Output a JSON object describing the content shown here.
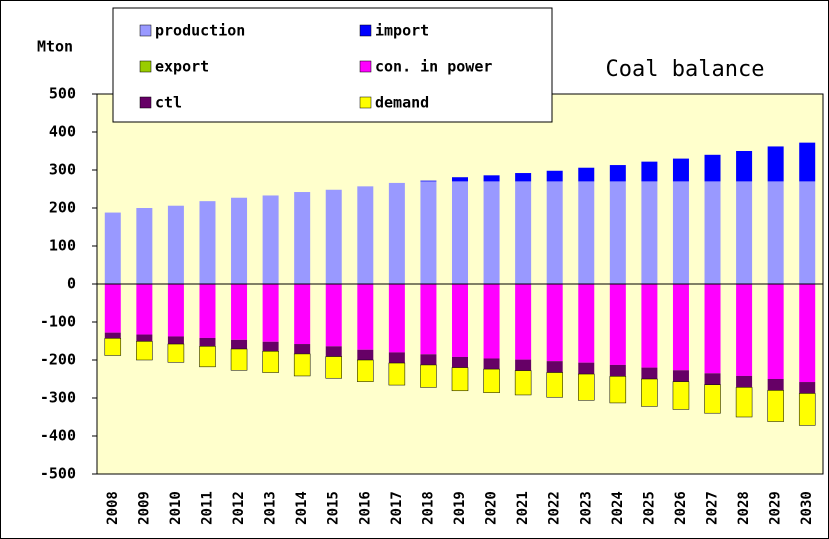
{
  "chart_data": {
    "type": "bar",
    "stacked": true,
    "title": "Coal balance",
    "y_label": "Mton",
    "categories": [
      "2008",
      "2009",
      "2010",
      "2011",
      "2012",
      "2013",
      "2014",
      "2015",
      "2016",
      "2017",
      "2018",
      "2019",
      "2020",
      "2021",
      "2022",
      "2023",
      "2024",
      "2025",
      "2026",
      "2027",
      "2028",
      "2029",
      "2030"
    ],
    "series": [
      {
        "name": "production",
        "color": "#9999ff",
        "values": [
          188,
          200,
          206,
          218,
          227,
          233,
          242,
          248,
          257,
          266,
          270,
          270,
          270,
          270,
          270,
          270,
          270,
          270,
          270,
          270,
          270,
          270,
          270
        ]
      },
      {
        "name": "import",
        "color": "#0000ff",
        "values": [
          0,
          0,
          0,
          0,
          0,
          0,
          0,
          0,
          0,
          0,
          2,
          11,
          16,
          22,
          28,
          36,
          43,
          52,
          60,
          70,
          80,
          92,
          102
        ]
      },
      {
        "name": "export",
        "color": "#99cc00",
        "values": [
          0,
          0,
          0,
          0,
          0,
          0,
          0,
          0,
          0,
          0,
          0,
          0,
          0,
          0,
          0,
          0,
          0,
          0,
          0,
          0,
          0,
          0,
          0
        ]
      },
      {
        "name": "con. in power",
        "color": "#ff00ff",
        "values": [
          -128,
          -133,
          -138,
          -142,
          -147,
          -152,
          -158,
          -164,
          -173,
          -180,
          -185,
          -192,
          -196,
          -199,
          -203,
          -207,
          -213,
          -220,
          -227,
          -235,
          -242,
          -250,
          -258
        ]
      },
      {
        "name": "ctl",
        "color": "#660066",
        "values": [
          -15,
          -18,
          -20,
          -22,
          -24,
          -25,
          -26,
          -27,
          -27,
          -28,
          -28,
          -28,
          -28,
          -29,
          -30,
          -30,
          -30,
          -30,
          -30,
          -30,
          -30,
          -30,
          -30
        ]
      },
      {
        "name": "demand",
        "color": "#ffff00",
        "values": [
          -45,
          -49,
          -48,
          -54,
          -56,
          -56,
          -58,
          -57,
          -57,
          -58,
          -59,
          -61,
          -62,
          -64,
          -65,
          -69,
          -70,
          -72,
          -73,
          -75,
          -78,
          -82,
          -84
        ]
      }
    ],
    "ylim": [
      -500,
      500
    ],
    "yticks": [
      -500,
      -400,
      -300,
      -200,
      -100,
      0,
      100,
      200,
      300,
      400,
      500
    ],
    "plot_background": "#ffffcc"
  }
}
